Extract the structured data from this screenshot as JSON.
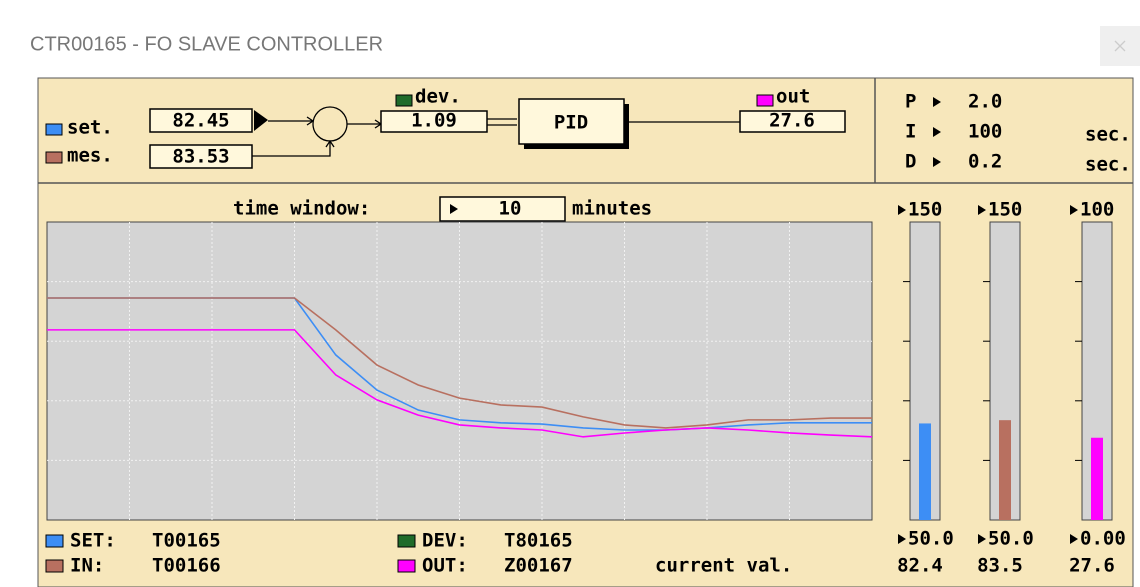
{
  "title": "CTR00165 - FO SLAVE CONTROLLER",
  "diagram": {
    "set_label": "set.",
    "set_value": "82.45",
    "mes_label": "mes.",
    "mes_value": "83.53",
    "dev_label": "dev.",
    "dev_value": "1.09",
    "block": "PID",
    "out_label": "out",
    "out_value": "27.6"
  },
  "tuning": [
    {
      "name": "P",
      "value": "2.0"
    },
    {
      "name": "I",
      "value": "100",
      "unit": "sec."
    },
    {
      "name": "D",
      "value": "0.2",
      "unit": "sec."
    }
  ],
  "time_window": {
    "label": "time window:",
    "value": "10",
    "unit": "minutes"
  },
  "legend": [
    {
      "key": "SET:",
      "tag": "T00165",
      "color": "#3d8ef5"
    },
    {
      "key": "IN:",
      "tag": "T00166",
      "color": "#b87060"
    },
    {
      "key": "DEV:",
      "tag": "T80165",
      "color": "#1f6b2a"
    },
    {
      "key": "OUT:",
      "tag": "Z00167",
      "color": "#ff00ff"
    }
  ],
  "current_label": "current val.",
  "gauges": [
    {
      "max": 150,
      "min": {
        "value": 50,
        "label": "50.0"
      },
      "value": 82.4,
      "color": "#3d8ef5",
      "trend": [
        124.5,
        124.5,
        124.5,
        124.5,
        124.5,
        124.5,
        124.5,
        105.4,
        93.6,
        86.9,
        83.6,
        82.6,
        82.2,
        80.9,
        80.2,
        80.2,
        80.9,
        81.9,
        82.6,
        82.6,
        82.6
      ]
    },
    {
      "max": 150,
      "min": {
        "value": 50,
        "label": "50.0"
      },
      "value": 83.5,
      "color": "#b87060",
      "trend": [
        124.5,
        124.5,
        124.5,
        124.5,
        124.5,
        124.5,
        124.5,
        113.8,
        102.0,
        95.3,
        90.9,
        88.6,
        87.9,
        84.6,
        81.9,
        80.9,
        81.9,
        83.6,
        83.6,
        84.2,
        84.2
      ]
    },
    {
      "max": 100,
      "min": {
        "value": 0,
        "label": "0.00"
      },
      "value": 27.6,
      "color": "#ff00ff",
      "trend": [
        63.8,
        63.8,
        63.8,
        63.8,
        63.8,
        63.8,
        63.8,
        48.7,
        40.3,
        35.2,
        31.9,
        30.9,
        30.2,
        27.9,
        29.2,
        30.2,
        30.9,
        30.2,
        29.2,
        28.5,
        27.9
      ]
    }
  ]
}
